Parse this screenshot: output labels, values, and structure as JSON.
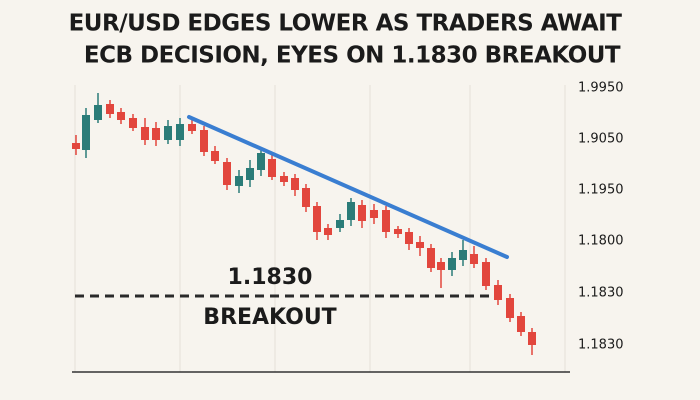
{
  "header": {
    "title": [
      "EUR/USD EDGES LOWER AS TRADERS AWAIT",
      "ECB DECISION, EYES ON 1.1830 BREAKOUT"
    ]
  },
  "axis": {
    "labels": [
      "1.9950",
      "1.9050",
      "1.1950",
      "1.1800",
      "1.1830",
      "1.1830"
    ]
  },
  "annotation": {
    "level": "1.1830",
    "label": "BREAKOUT"
  }
}
